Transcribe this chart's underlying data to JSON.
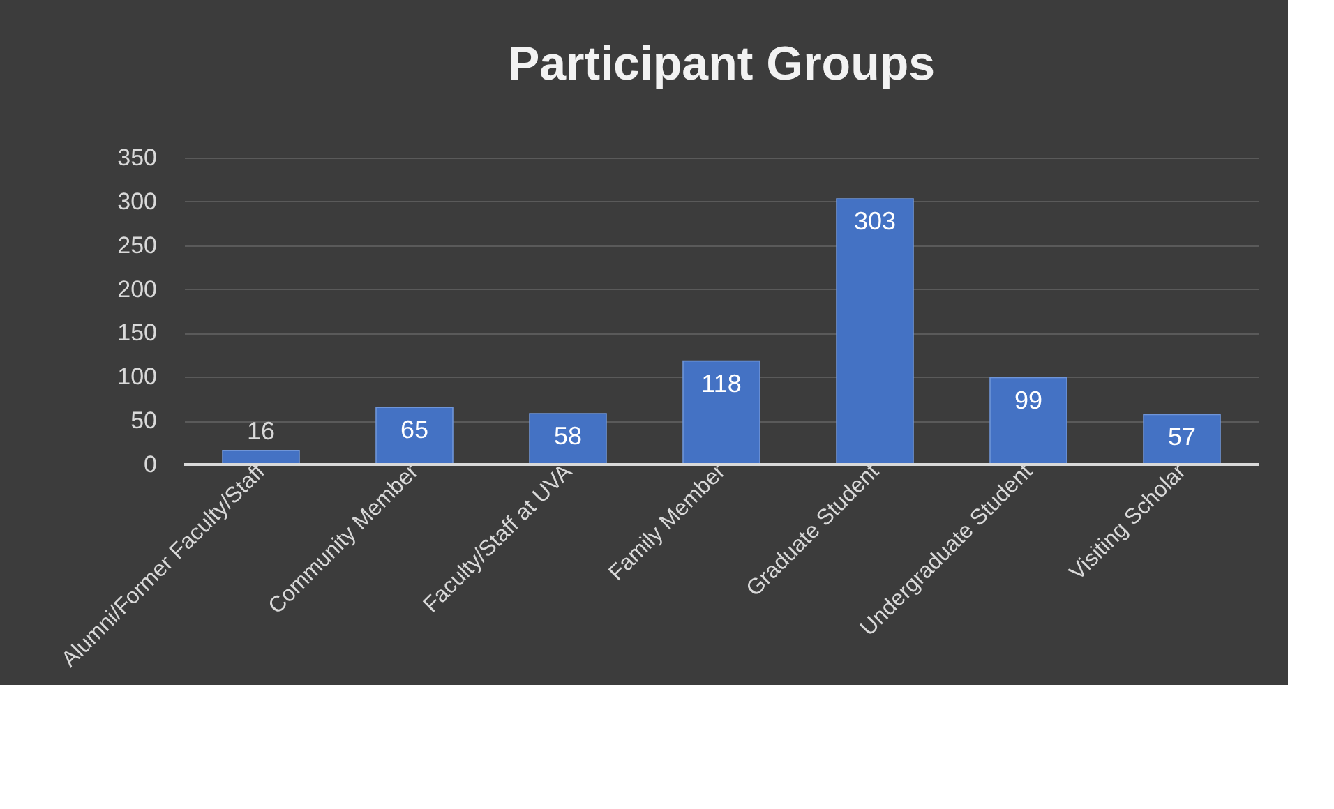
{
  "chart_data": {
    "type": "bar",
    "title": "Participant Groups",
    "categories": [
      "Alumni/Former Faculty/Staff",
      "Community Member",
      "Faculty/Staff at UVA",
      "Family Member",
      "Graduate Student",
      "Undergraduate Student",
      "Visiting Scholar"
    ],
    "values": [
      16,
      65,
      58,
      118,
      303,
      99,
      57
    ],
    "color": "#4472c4",
    "ylim": [
      0,
      350
    ],
    "yticks": [
      0,
      50,
      100,
      150,
      200,
      250,
      300,
      350
    ],
    "grid": "y",
    "data_labels": true
  }
}
